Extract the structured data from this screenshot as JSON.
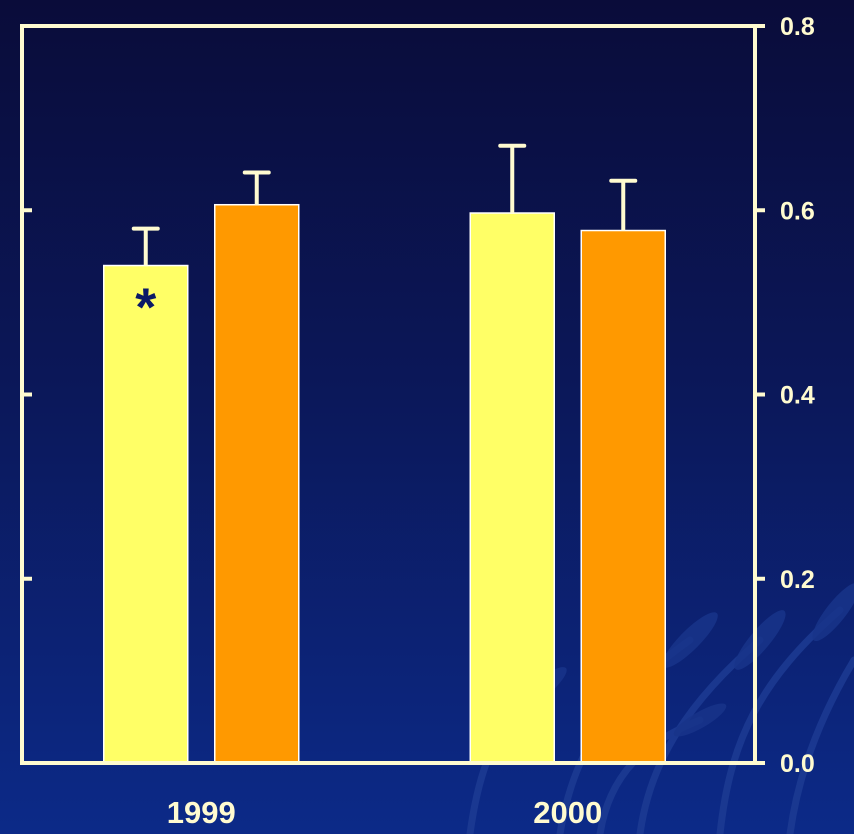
{
  "chart_data": {
    "type": "bar",
    "categories": [
      "1999",
      "2000"
    ],
    "series": [
      {
        "values": [
          0.54,
          0.606
        ],
        "errors": [
          0.04,
          0.035
        ],
        "color": "#ffff66"
      },
      {
        "values": [
          0.597,
          0.578
        ],
        "errors": [
          0.073,
          0.054
        ],
        "color": "#ff9900"
      }
    ],
    "series_layout": "paired",
    "yticks": [
      "0.0",
      "0.2",
      "0.4",
      "0.6",
      "0.8"
    ],
    "ylim": [
      0,
      0.8
    ],
    "y_axis_side": "right",
    "grid": false,
    "legend": "none",
    "annotations": [
      {
        "text": "*",
        "category": "1999",
        "series_index": 0,
        "color": "#0b1a66"
      }
    ],
    "colors": {
      "axis": "#fffbd0",
      "text": "#fffbd0",
      "background_top": "#0a0c3a",
      "background_bottom": "#0c2a88"
    }
  }
}
